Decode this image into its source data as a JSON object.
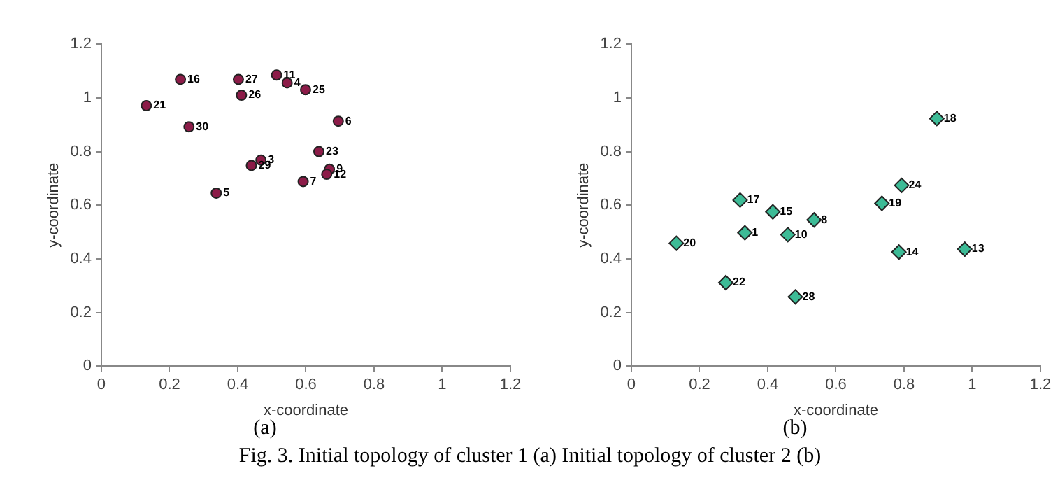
{
  "chart_data": [
    {
      "type": "scatter",
      "xlabel": "x-coordinate",
      "ylabel": "y-coordinate",
      "xlim": [
        0,
        1.2
      ],
      "ylim": [
        0,
        1.2
      ],
      "xticks": [
        0,
        0.2,
        0.4,
        0.6,
        0.8,
        1,
        1.2
      ],
      "yticks": [
        0,
        0.2,
        0.4,
        0.6,
        0.8,
        1,
        1.2
      ],
      "grid": false,
      "legend": false,
      "marker": "circle",
      "series": [
        {
          "color": "#8c1c48",
          "x": [
            0.132,
            0.232,
            0.257,
            0.402,
            0.411,
            0.514,
            0.545,
            0.599,
            0.695,
            0.638,
            0.44,
            0.468,
            0.669,
            0.661,
            0.592,
            0.337
          ],
          "values": [
            0.971,
            1.069,
            0.892,
            1.069,
            1.01,
            1.085,
            1.056,
            1.03,
            0.913,
            0.8,
            0.748,
            0.768,
            0.734,
            0.715,
            0.688,
            0.645
          ]
        }
      ],
      "annotations": [
        "(a)",
        "Fig. 3. Initial topology of cluster 1 (a) Initial topology of cluster 2 (b)",
        {
          "text": "21",
          "x": 0.132,
          "y": 0.971
        },
        {
          "text": "16",
          "x": 0.232,
          "y": 1.069
        },
        {
          "text": "30",
          "x": 0.257,
          "y": 0.892
        },
        {
          "text": "27",
          "x": 0.402,
          "y": 1.069
        },
        {
          "text": "26",
          "x": 0.411,
          "y": 1.01
        },
        {
          "text": "11",
          "x": 0.514,
          "y": 1.085
        },
        {
          "text": "4",
          "x": 0.545,
          "y": 1.056
        },
        {
          "text": "25",
          "x": 0.599,
          "y": 1.03
        },
        {
          "text": "6",
          "x": 0.695,
          "y": 0.913
        },
        {
          "text": "23",
          "x": 0.638,
          "y": 0.8
        },
        {
          "text": "29",
          "x": 0.44,
          "y": 0.748
        },
        {
          "text": "3",
          "x": 0.468,
          "y": 0.768
        },
        {
          "text": "9",
          "x": 0.669,
          "y": 0.734
        },
        {
          "text": "12",
          "x": 0.661,
          "y": 0.715
        },
        {
          "text": "7",
          "x": 0.592,
          "y": 0.688
        },
        {
          "text": "5",
          "x": 0.337,
          "y": 0.645
        }
      ]
    },
    {
      "type": "scatter",
      "xlabel": "x-coordinate",
      "ylabel": "y-coordinate",
      "xlim": [
        0,
        1.2
      ],
      "ylim": [
        0,
        1.2
      ],
      "xticks": [
        0,
        0.2,
        0.4,
        0.6,
        0.8,
        1,
        1.2
      ],
      "yticks": [
        0,
        0.2,
        0.4,
        0.6,
        0.8,
        1,
        1.2
      ],
      "grid": false,
      "legend": false,
      "marker": "diamond",
      "series": [
        {
          "color": "#3dbb96",
          "x": [
            0.896,
            0.793,
            0.735,
            0.319,
            0.415,
            0.536,
            0.333,
            0.459,
            0.132,
            0.785,
            0.978,
            0.277,
            0.481
          ],
          "values": [
            0.923,
            0.674,
            0.607,
            0.619,
            0.575,
            0.545,
            0.497,
            0.49,
            0.458,
            0.425,
            0.436,
            0.311,
            0.258
          ]
        }
      ],
      "annotations": [
        "(b)",
        {
          "text": "18",
          "x": 0.896,
          "y": 0.923
        },
        {
          "text": "24",
          "x": 0.793,
          "y": 0.674
        },
        {
          "text": "19",
          "x": 0.735,
          "y": 0.607
        },
        {
          "text": "17",
          "x": 0.319,
          "y": 0.619
        },
        {
          "text": "15",
          "x": 0.415,
          "y": 0.575
        },
        {
          "text": "8",
          "x": 0.536,
          "y": 0.545
        },
        {
          "text": "1",
          "x": 0.333,
          "y": 0.497
        },
        {
          "text": "10",
          "x": 0.459,
          "y": 0.49
        },
        {
          "text": "20",
          "x": 0.132,
          "y": 0.458
        },
        {
          "text": "14",
          "x": 0.785,
          "y": 0.425
        },
        {
          "text": "13",
          "x": 0.978,
          "y": 0.436
        },
        {
          "text": "22",
          "x": 0.277,
          "y": 0.311
        },
        {
          "text": "28",
          "x": 0.481,
          "y": 0.258
        }
      ]
    }
  ]
}
